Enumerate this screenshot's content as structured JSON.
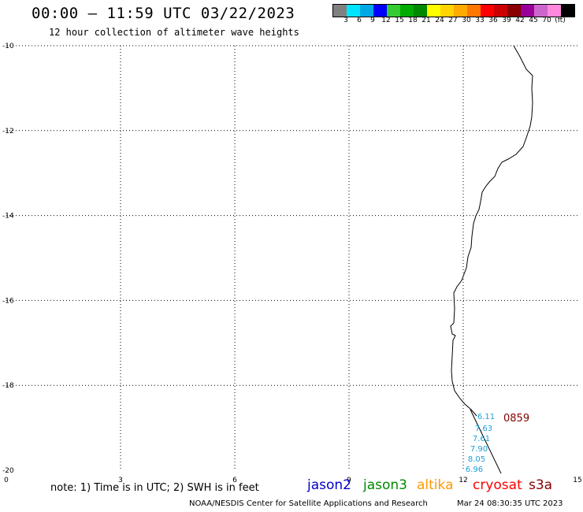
{
  "header": {
    "title": "00:00 – 11:59 UTC 03/22/2023",
    "subtitle": "12 hour collection of altimeter wave heights"
  },
  "colorbar": {
    "colors": [
      "#808080",
      "#00e5ff",
      "#00a8e6",
      "#0000ff",
      "#33cc33",
      "#00aa00",
      "#008800",
      "#ffff00",
      "#ffd400",
      "#ffaa00",
      "#ff7700",
      "#ff0000",
      "#cc0000",
      "#880000",
      "#990099",
      "#cc66cc",
      "#ff88dd",
      "#000000"
    ],
    "labels": [
      "3",
      "6",
      "9",
      "12",
      "15",
      "18",
      "21",
      "24",
      "27",
      "30",
      "33",
      "36",
      "39",
      "42",
      "45",
      "70",
      "(ft)"
    ]
  },
  "axes": {
    "x_ticks": [
      "0",
      "3",
      "6",
      "9",
      "12",
      "15"
    ],
    "y_ticks": [
      "-10",
      "-12",
      "-14",
      "-16",
      "-18",
      "-20"
    ],
    "lon_range": [
      0,
      15
    ],
    "lat_range": [
      -20,
      -10
    ],
    "grid": "dotted"
  },
  "swh_readings": {
    "color": "#1aa0d8",
    "values": [
      "6.11",
      "7.63",
      "7.61",
      "7.90",
      "8.05",
      "6.96"
    ]
  },
  "pass_time": {
    "label": "0859",
    "color": "#800000"
  },
  "note": "note: 1) Time is in UTC; 2) SWH is in feet",
  "legend": [
    {
      "label": "jason2",
      "color": "#0000cc"
    },
    {
      "label": "jason3",
      "color": "#008800"
    },
    {
      "label": "altika",
      "color": "#ff9900"
    },
    {
      "label": "cryosat",
      "color": "#ff0000"
    },
    {
      "label": "s3a",
      "color": "#880000"
    }
  ],
  "footer": {
    "source": "NOAA/NESDIS Center for Satellite Applications and Research",
    "timestamp": "Mar 24 08:30:35 UTC 2023"
  }
}
